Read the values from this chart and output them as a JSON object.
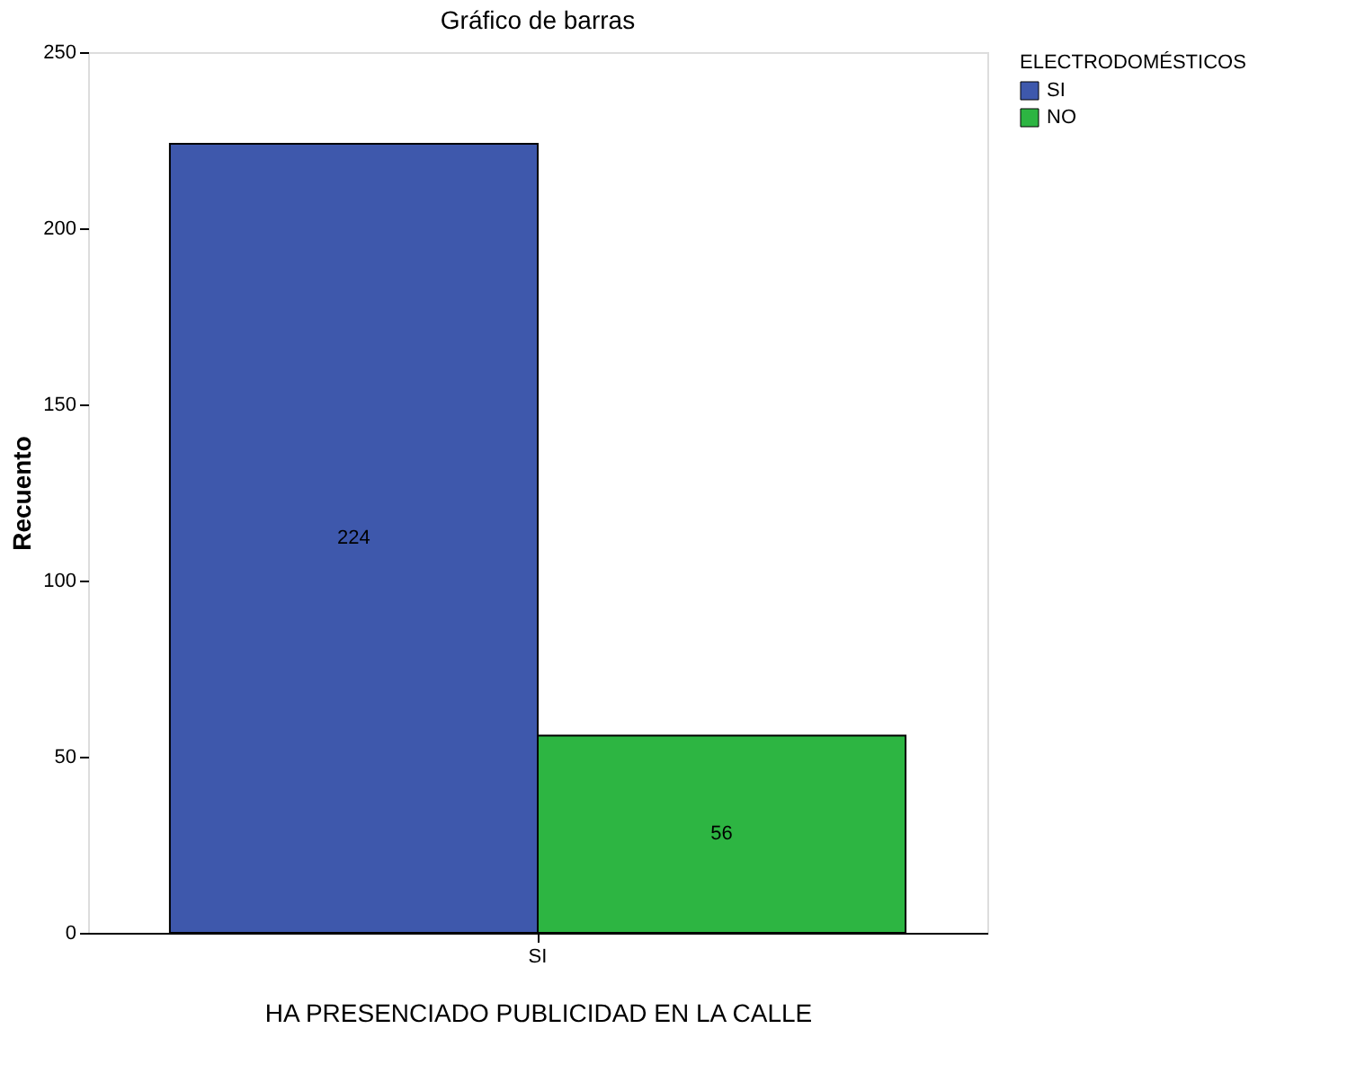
{
  "chart_data": {
    "type": "bar",
    "title": "Gráfico de barras",
    "xlabel": "HA PRESENCIADO PUBLICIDAD EN LA CALLE",
    "ylabel": "Recuento",
    "legend_title": "ELECTRODOMÉSTICOS",
    "categories": [
      "SI"
    ],
    "series": [
      {
        "name": "SI",
        "color": "#3e58ac",
        "values": [
          224
        ]
      },
      {
        "name": "NO",
        "color": "#2db542",
        "values": [
          56
        ]
      }
    ],
    "ylim": [
      0,
      250
    ],
    "yticks": [
      0,
      50,
      100,
      150,
      200,
      250
    ],
    "grid": false,
    "legend": "top right",
    "data_labels": true
  }
}
